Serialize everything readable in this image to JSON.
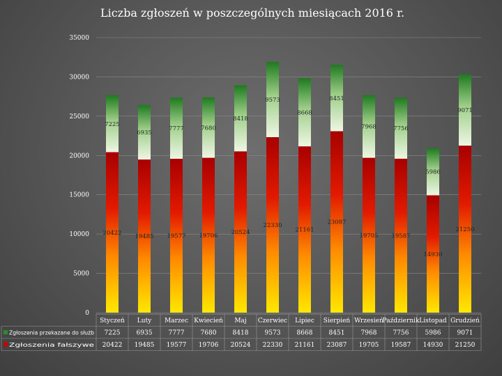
{
  "chart_data": {
    "type": "bar",
    "stacked": true,
    "title": "Liczba zgłoszeń w poszczególnych miesiącach 2016 r.",
    "categories": [
      "Styczeń",
      "Luty",
      "Marzec",
      "Kwiecień",
      "Maj",
      "Czerwiec",
      "Lipiec",
      "Sierpień",
      "Wrzesień",
      "Październik",
      "Listopad",
      "Grudzień"
    ],
    "series": [
      {
        "name": "Zgłoszenia fałszywe",
        "values": [
          20422,
          19485,
          19577,
          19706,
          20524,
          22330,
          21161,
          23087,
          19705,
          19587,
          14930,
          21250
        ],
        "color": "#cc0000"
      },
      {
        "name": "Zgłoszenia przekazane do służb",
        "values": [
          7225,
          6935,
          7777,
          7680,
          8418,
          9573,
          8668,
          8451,
          7968,
          7756,
          5986,
          9071
        ],
        "color": "#2e8b2e"
      }
    ],
    "ylim": [
      0,
      35000
    ],
    "yticks": [
      0,
      5000,
      10000,
      15000,
      20000,
      25000,
      30000,
      35000
    ],
    "ytick_labels": [
      "0",
      "5000",
      "10000",
      "15000",
      "20000",
      "25000",
      "30000",
      "35000"
    ],
    "table_rows": [
      {
        "label": "Zgłoszenia przekazane do służb",
        "display": [
          "7225",
          "6935",
          "7777",
          "7680",
          "8418",
          "9573",
          "8668",
          "8451",
          "7968",
          "7756",
          "5986",
          "9071"
        ]
      },
      {
        "label": "Zgłoszenia fałszywe",
        "display": [
          "20422",
          "19485",
          "19577",
          "19706",
          "20524",
          "22330",
          "21161",
          "23087",
          "19705",
          "19587",
          "14930",
          "21250"
        ]
      }
    ],
    "grid": true
  }
}
